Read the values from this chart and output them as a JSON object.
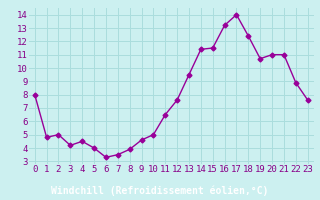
{
  "x": [
    0,
    1,
    2,
    3,
    4,
    5,
    6,
    7,
    8,
    9,
    10,
    11,
    12,
    13,
    14,
    15,
    16,
    17,
    18,
    19,
    20,
    21,
    22,
    23
  ],
  "y": [
    8.0,
    4.8,
    5.0,
    4.2,
    4.5,
    4.0,
    3.3,
    3.5,
    3.9,
    4.6,
    5.0,
    6.5,
    7.6,
    9.5,
    11.4,
    11.5,
    13.2,
    14.0,
    12.4,
    10.7,
    11.0,
    11.0,
    8.9,
    7.6
  ],
  "line_color": "#990099",
  "marker": "D",
  "marker_size": 2.5,
  "bg_color": "#ccf0f0",
  "plot_bg_color": "#ccf0f0",
  "grid_color": "#aadddd",
  "bottom_bar_color": "#8800aa",
  "xlabel": "Windchill (Refroidissement éolien,°C)",
  "xlabel_color": "#ffffff",
  "xlabel_fontsize": 7,
  "tick_color": "#880088",
  "tick_fontsize": 6.5,
  "ylim": [
    2.8,
    14.5
  ],
  "xlim": [
    -0.5,
    23.5
  ],
  "yticks": [
    3,
    4,
    5,
    6,
    7,
    8,
    9,
    10,
    11,
    12,
    13,
    14
  ],
  "xticks": [
    0,
    1,
    2,
    3,
    4,
    5,
    6,
    7,
    8,
    9,
    10,
    11,
    12,
    13,
    14,
    15,
    16,
    17,
    18,
    19,
    20,
    21,
    22,
    23
  ]
}
